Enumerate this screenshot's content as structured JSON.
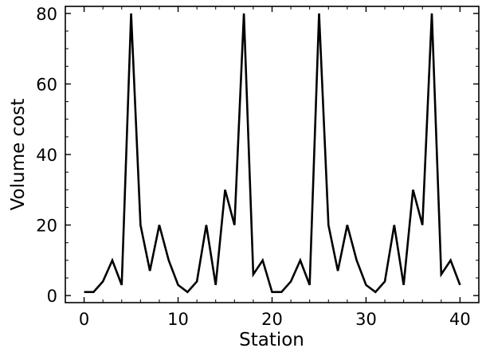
{
  "chart_data": {
    "type": "line",
    "title": "",
    "xlabel": "Station",
    "ylabel": "Volume cost",
    "xlim": [
      -2,
      42
    ],
    "ylim": [
      -2,
      82
    ],
    "xticks": [
      0,
      10,
      20,
      30,
      40
    ],
    "xtick_labels": [
      "0",
      "10",
      "20",
      "30",
      "40"
    ],
    "yticks": [
      0,
      20,
      40,
      60,
      80
    ],
    "ytick_labels": [
      "0",
      "20",
      "40",
      "60",
      "80"
    ],
    "grid": false,
    "legend": "none",
    "colors": {
      "line": "#000000",
      "axes": "#000000"
    },
    "series": [
      {
        "x": [
          0,
          1,
          2,
          3,
          4,
          5,
          6,
          7,
          8,
          9,
          10,
          11,
          12,
          13,
          14,
          15,
          16,
          17,
          18,
          19,
          20,
          21,
          22,
          23,
          24,
          25,
          26,
          27,
          28,
          29,
          30,
          31,
          32,
          33,
          34,
          35,
          36,
          37,
          38,
          39,
          40
        ],
        "values": [
          1,
          1,
          4,
          10,
          3,
          80,
          20,
          7,
          20,
          10,
          3,
          1,
          4,
          20,
          3,
          30,
          20,
          80,
          6,
          10,
          1,
          1,
          4,
          10,
          3,
          80,
          20,
          7,
          20,
          10,
          3,
          1,
          4,
          20,
          3,
          30,
          20,
          80,
          6,
          10,
          3
        ]
      }
    ]
  }
}
